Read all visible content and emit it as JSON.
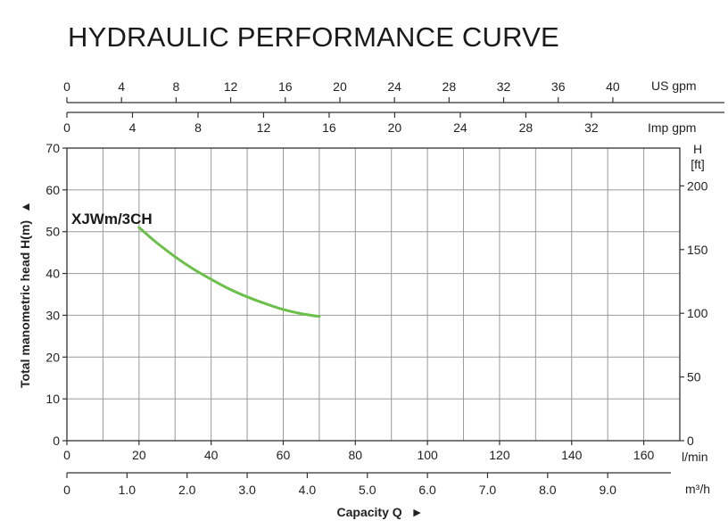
{
  "chart_data": {
    "type": "line",
    "title": "HYDRAULIC PERFORMANCE CURVE",
    "ylabel": "Total manometric head H(m)",
    "ylabel_arrow": "▲",
    "xlabel": "Capacity Q",
    "xlabel_arrow": "►",
    "grid": true,
    "ylim": [
      0,
      70
    ],
    "xlim": [
      0,
      170
    ],
    "y_ticks": [
      "0",
      "10",
      "20",
      "30",
      "40",
      "50",
      "60",
      "70"
    ],
    "y_tick_values": [
      0,
      10,
      20,
      30,
      40,
      50,
      60,
      70
    ],
    "x_ticks_lmin": [
      "0",
      "20",
      "40",
      "60",
      "80",
      "100",
      "120",
      "140",
      "160"
    ],
    "x_tick_values_lmin": [
      0,
      20,
      40,
      60,
      80,
      100,
      120,
      140,
      160
    ],
    "x_unit_lmin": "l/min",
    "x_ticks_m3h": [
      "0",
      "1.0",
      "2.0",
      "3.0",
      "4.0",
      "5.0",
      "6.0",
      "7.0",
      "8.0",
      "9.0"
    ],
    "x_tick_values_m3h": [
      0,
      1,
      2,
      3,
      4,
      5,
      6,
      7,
      8,
      9
    ],
    "x_unit_m3h": "m³/h",
    "x_ticks_usgpm": [
      "0",
      "4",
      "8",
      "12",
      "16",
      "20",
      "24",
      "28",
      "32",
      "36",
      "40"
    ],
    "x_tick_values_usgpm": [
      0,
      4,
      8,
      12,
      16,
      20,
      24,
      28,
      32,
      36,
      40
    ],
    "x_unit_usgpm": "US gpm",
    "x_ticks_impgpm": [
      "0",
      "4",
      "8",
      "12",
      "16",
      "20",
      "24",
      "28",
      "32"
    ],
    "x_tick_values_impgpm": [
      0,
      4,
      8,
      12,
      16,
      20,
      24,
      28,
      32
    ],
    "x_unit_impgpm": "Imp gpm",
    "y2_label": "H",
    "y2_unit": "[ft]",
    "y2_ticks": [
      "0",
      "50",
      "100",
      "150",
      "200"
    ],
    "y2_tick_values": [
      0,
      50,
      100,
      150,
      200
    ],
    "series": [
      {
        "name": "XJWm/3CH",
        "color": "#6cc04a",
        "x": [
          20,
          25,
          30,
          35,
          40,
          45,
          50,
          55,
          60,
          65,
          70
        ],
        "y": [
          51.0,
          47.3,
          44.0,
          41.1,
          38.6,
          36.3,
          34.4,
          32.8,
          31.4,
          30.4,
          29.7
        ]
      }
    ]
  }
}
